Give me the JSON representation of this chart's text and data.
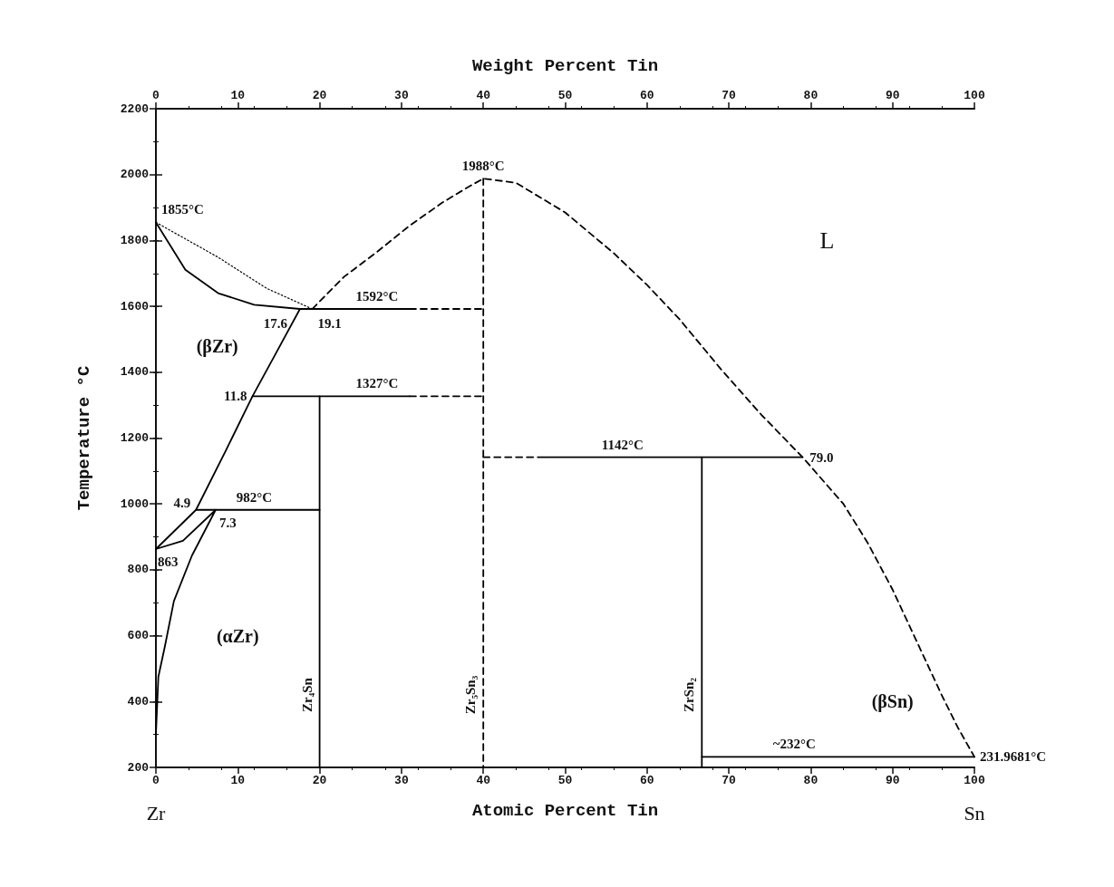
{
  "chart_data": {
    "type": "line",
    "xlabel": "Atomic Percent Tin",
    "x2label": "Weight Percent Tin",
    "ylabel": "Temperature °C",
    "xlim": [
      0,
      100
    ],
    "xticks": [
      0,
      10,
      20,
      30,
      40,
      50,
      60,
      70,
      80,
      90,
      100
    ],
    "x2lim": [
      0,
      100
    ],
    "x2ticks": [
      0,
      10,
      20,
      30,
      40,
      50,
      60,
      70,
      80,
      90,
      100
    ],
    "ylim": [
      200,
      2200
    ],
    "yticks": [
      200,
      400,
      600,
      800,
      1000,
      1200,
      1400,
      1600,
      1800,
      2000,
      2200
    ],
    "grid": false,
    "marker": "none",
    "series": [
      {
        "color": "#000000",
        "line_style": "dotted",
        "x": [
          0,
          7.6,
          13.5,
          19.1
        ],
        "values": [
          1855,
          1749,
          1655,
          1592
        ]
      },
      {
        "color": "#000000",
        "line_style": "solid",
        "x": [
          0,
          1,
          3.6,
          7.6,
          12,
          17.6,
          31
        ],
        "values": [
          1855,
          1815,
          1711,
          1640,
          1605,
          1592,
          1592
        ]
      },
      {
        "color": "#000000",
        "line_style": "dashed",
        "x": [
          19.1,
          23,
          27,
          31,
          35,
          38,
          40,
          44,
          50,
          56,
          60,
          64,
          69,
          74,
          79,
          84,
          87,
          90,
          93,
          96,
          98,
          100
        ],
        "values": [
          1592,
          1690,
          1765,
          1845,
          1915,
          1960,
          1988,
          1975,
          1885,
          1760,
          1665,
          1560,
          1410,
          1270,
          1142,
          1000,
          880,
          740,
          580,
          420,
          320,
          232
        ]
      },
      {
        "color": "#000000",
        "line_style": "solid",
        "x": [
          17.6,
          14.5,
          11.8,
          8.5,
          4.9,
          0,
          3.3,
          7.3,
          4.4,
          2.2,
          1.1,
          0.3,
          0
        ],
        "values": [
          1592,
          1450,
          1327,
          1160,
          982,
          863,
          888,
          982,
          843,
          705,
          568,
          475,
          300
        ]
      },
      {
        "color": "#000000",
        "line_style": "solid",
        "x": [
          4.9,
          20
        ],
        "values": [
          982,
          982
        ]
      },
      {
        "color": "#000000",
        "line_style": "solid",
        "x": [
          11.8,
          31
        ],
        "values": [
          1327,
          1327
        ]
      },
      {
        "color": "#000000",
        "line_style": "dashed",
        "x": [
          31,
          40
        ],
        "values": [
          1327,
          1327
        ]
      },
      {
        "color": "#000000",
        "line_style": "dashed",
        "x": [
          31,
          40
        ],
        "values": [
          1592,
          1592
        ]
      },
      {
        "color": "#000000",
        "line_style": "dashed",
        "x": [
          40,
          47.5
        ],
        "values": [
          1142,
          1142
        ]
      },
      {
        "color": "#000000",
        "line_style": "solid",
        "x": [
          47.5,
          79
        ],
        "values": [
          1142,
          1142
        ]
      },
      {
        "color": "#000000",
        "line_style": "solid",
        "x": [
          20,
          20
        ],
        "values": [
          1327,
          200
        ]
      },
      {
        "color": "#000000",
        "line_style": "dashed",
        "x": [
          40,
          40
        ],
        "values": [
          1988,
          200
        ]
      },
      {
        "color": "#000000",
        "line_style": "solid",
        "x": [
          66.7,
          66.7
        ],
        "values": [
          1142,
          200
        ]
      },
      {
        "color": "#000000",
        "line_style": "solid",
        "x": [
          66.7,
          100
        ],
        "values": [
          232,
          232
        ]
      }
    ],
    "annotations": [
      {
        "text": "1855°C",
        "x": 0,
        "y": 1855
      },
      {
        "text": "1988°C",
        "x": 40,
        "y": 1988
      },
      {
        "text": "1592°C",
        "x": 27,
        "y": 1592
      },
      {
        "text": "17.6",
        "x": 17.6,
        "y": 1592
      },
      {
        "text": "19.1",
        "x": 19.1,
        "y": 1592
      },
      {
        "text": "11.8",
        "x": 11.8,
        "y": 1327
      },
      {
        "text": "1327°C",
        "x": 27,
        "y": 1327
      },
      {
        "text": "4.9",
        "x": 4.9,
        "y": 982
      },
      {
        "text": "982°C",
        "x": 12,
        "y": 982
      },
      {
        "text": "7.3",
        "x": 7.3,
        "y": 982
      },
      {
        "text": "863",
        "x": 0,
        "y": 863
      },
      {
        "text": "1142°C",
        "x": 57,
        "y": 1142
      },
      {
        "text": "79.0",
        "x": 79,
        "y": 1142
      },
      {
        "text": "~232°C",
        "x": 78,
        "y": 232
      },
      {
        "text": "231.9681°C",
        "x": 100,
        "y": 232
      },
      {
        "text": "Zr₄Sn",
        "x": 20,
        "y": 420
      },
      {
        "text": "Zr₅Sn₃",
        "x": 40,
        "y": 420
      },
      {
        "text": "ZrSn₂",
        "x": 66.7,
        "y": 420
      },
      "(βZr)",
      "(αZr)",
      "L",
      "(βSn)",
      "Zr",
      "Sn"
    ]
  }
}
